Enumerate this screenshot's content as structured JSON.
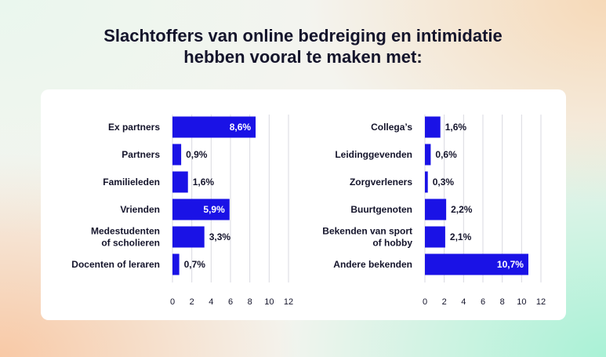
{
  "title": {
    "line1": "Slachtoffers van online bedreiging en intimidatie",
    "line2": "hebben vooral te maken met:"
  },
  "colors": {
    "bar": "#1a12e6",
    "text": "#14142b",
    "inside_label": "#ffffff"
  },
  "chart_data": [
    {
      "type": "bar",
      "orientation": "horizontal",
      "categories": [
        [
          "Ex partners"
        ],
        [
          "Partners"
        ],
        [
          "Familieleden"
        ],
        [
          "Vrienden"
        ],
        [
          "Medestudenten",
          "of scholieren"
        ],
        [
          "Docenten of leraren"
        ]
      ],
      "values": [
        8.6,
        0.9,
        1.6,
        5.9,
        3.3,
        0.7
      ],
      "value_labels": [
        "8,6%",
        "0,9%",
        "1,6%",
        "5,9%",
        "3,3%",
        "0,7%"
      ],
      "xlim": [
        0,
        12
      ],
      "xticks": [
        "0",
        "2",
        "4",
        "6",
        "8",
        "10",
        "12"
      ],
      "grid": true
    },
    {
      "type": "bar",
      "orientation": "horizontal",
      "categories": [
        [
          "Collega’s"
        ],
        [
          "Leidinggevenden"
        ],
        [
          "Zorgverleners"
        ],
        [
          "Buurtgenoten"
        ],
        [
          "Bekenden van sport",
          "of hobby"
        ],
        [
          "Andere bekenden"
        ]
      ],
      "values": [
        1.6,
        0.6,
        0.3,
        2.2,
        2.1,
        10.7
      ],
      "value_labels": [
        "1,6%",
        "0,6%",
        "0,3%",
        "2,2%",
        "2,1%",
        "10,7%"
      ],
      "xlim": [
        0,
        12
      ],
      "xticks": [
        "0",
        "2",
        "4",
        "6",
        "8",
        "10",
        "12"
      ],
      "grid": true
    }
  ]
}
